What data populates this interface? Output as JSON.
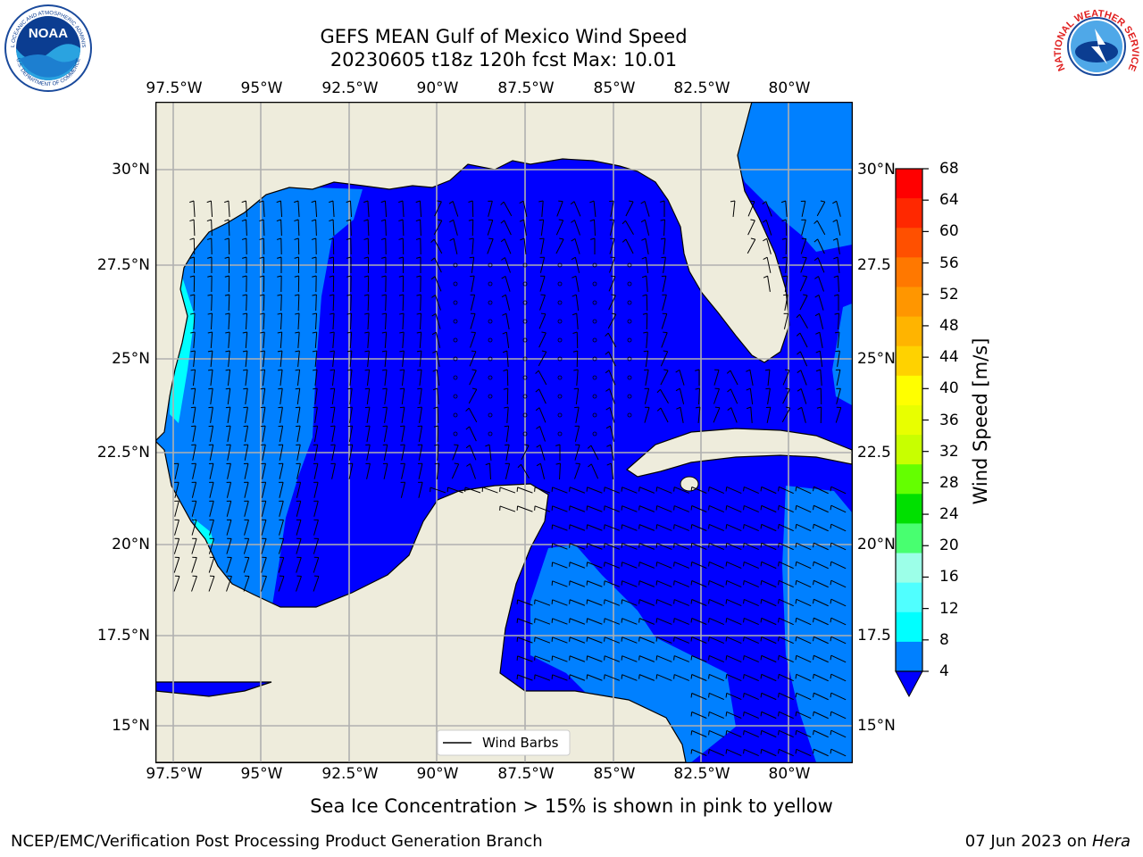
{
  "header": {
    "title_line1": "GEFS MEAN Gulf of Mexico Wind Speed",
    "title_line2": "20230605 t18z 120h fcst   Max: 10.01"
  },
  "logos": {
    "noaa_text": "NOAA",
    "noaa_ring_top": "NATIONAL OCEANIC AND ATMOSPHERIC ADMINISTRATION",
    "noaa_ring_bottom": "U.S. DEPARTMENT OF COMMERCE",
    "nws_ring": "NATIONAL WEATHER SERVICE"
  },
  "map": {
    "lon_labels": [
      "97.5°W",
      "95°W",
      "92.5°W",
      "90°W",
      "87.5°W",
      "85°W",
      "82.5°W",
      "80°W"
    ],
    "lat_labels_left": [
      "30°N",
      "27.5°N",
      "25°N",
      "22.5°N",
      "20°N",
      "17.5°N",
      "15°N"
    ],
    "lat_labels_right": [
      "30°N",
      "27.5",
      "25°N",
      "22.5",
      "20°N",
      "17.5",
      "15°N"
    ],
    "lon_range": [
      -98,
      -78.2
    ],
    "lat_range": [
      14.0,
      31.8
    ],
    "legend_label": "Wind Barbs",
    "land_color": "#eeecdc",
    "field_colors": {
      "ws_4_8": "#0080ff",
      "ws_gt_8": "#00ffff",
      "ws_lt_4": "#0000ff"
    }
  },
  "colorbar": {
    "label": "Wind Speed [m/s]",
    "ticks": [
      "68",
      "64",
      "60",
      "56",
      "52",
      "48",
      "44",
      "40",
      "36",
      "32",
      "28",
      "24",
      "20",
      "16",
      "12",
      "8",
      "4"
    ],
    "colors": [
      "#ff0000",
      "#ff2800",
      "#ff5000",
      "#ff7800",
      "#ff9600",
      "#ffb400",
      "#ffd200",
      "#ffff00",
      "#e8ff00",
      "#c8ff00",
      "#64ff00",
      "#00e000",
      "#48ff70",
      "#9cffe8",
      "#50ffff",
      "#00ffff",
      "#0080ff"
    ],
    "under_color": "#0000ff"
  },
  "caption": "Sea Ice Concentration > 15% is shown in pink to yellow",
  "footer": {
    "left": "NCEP/EMC/Verification Post Processing Product Generation Branch",
    "right_date": "07 Jun 2023 on ",
    "right_host": "Hera"
  }
}
